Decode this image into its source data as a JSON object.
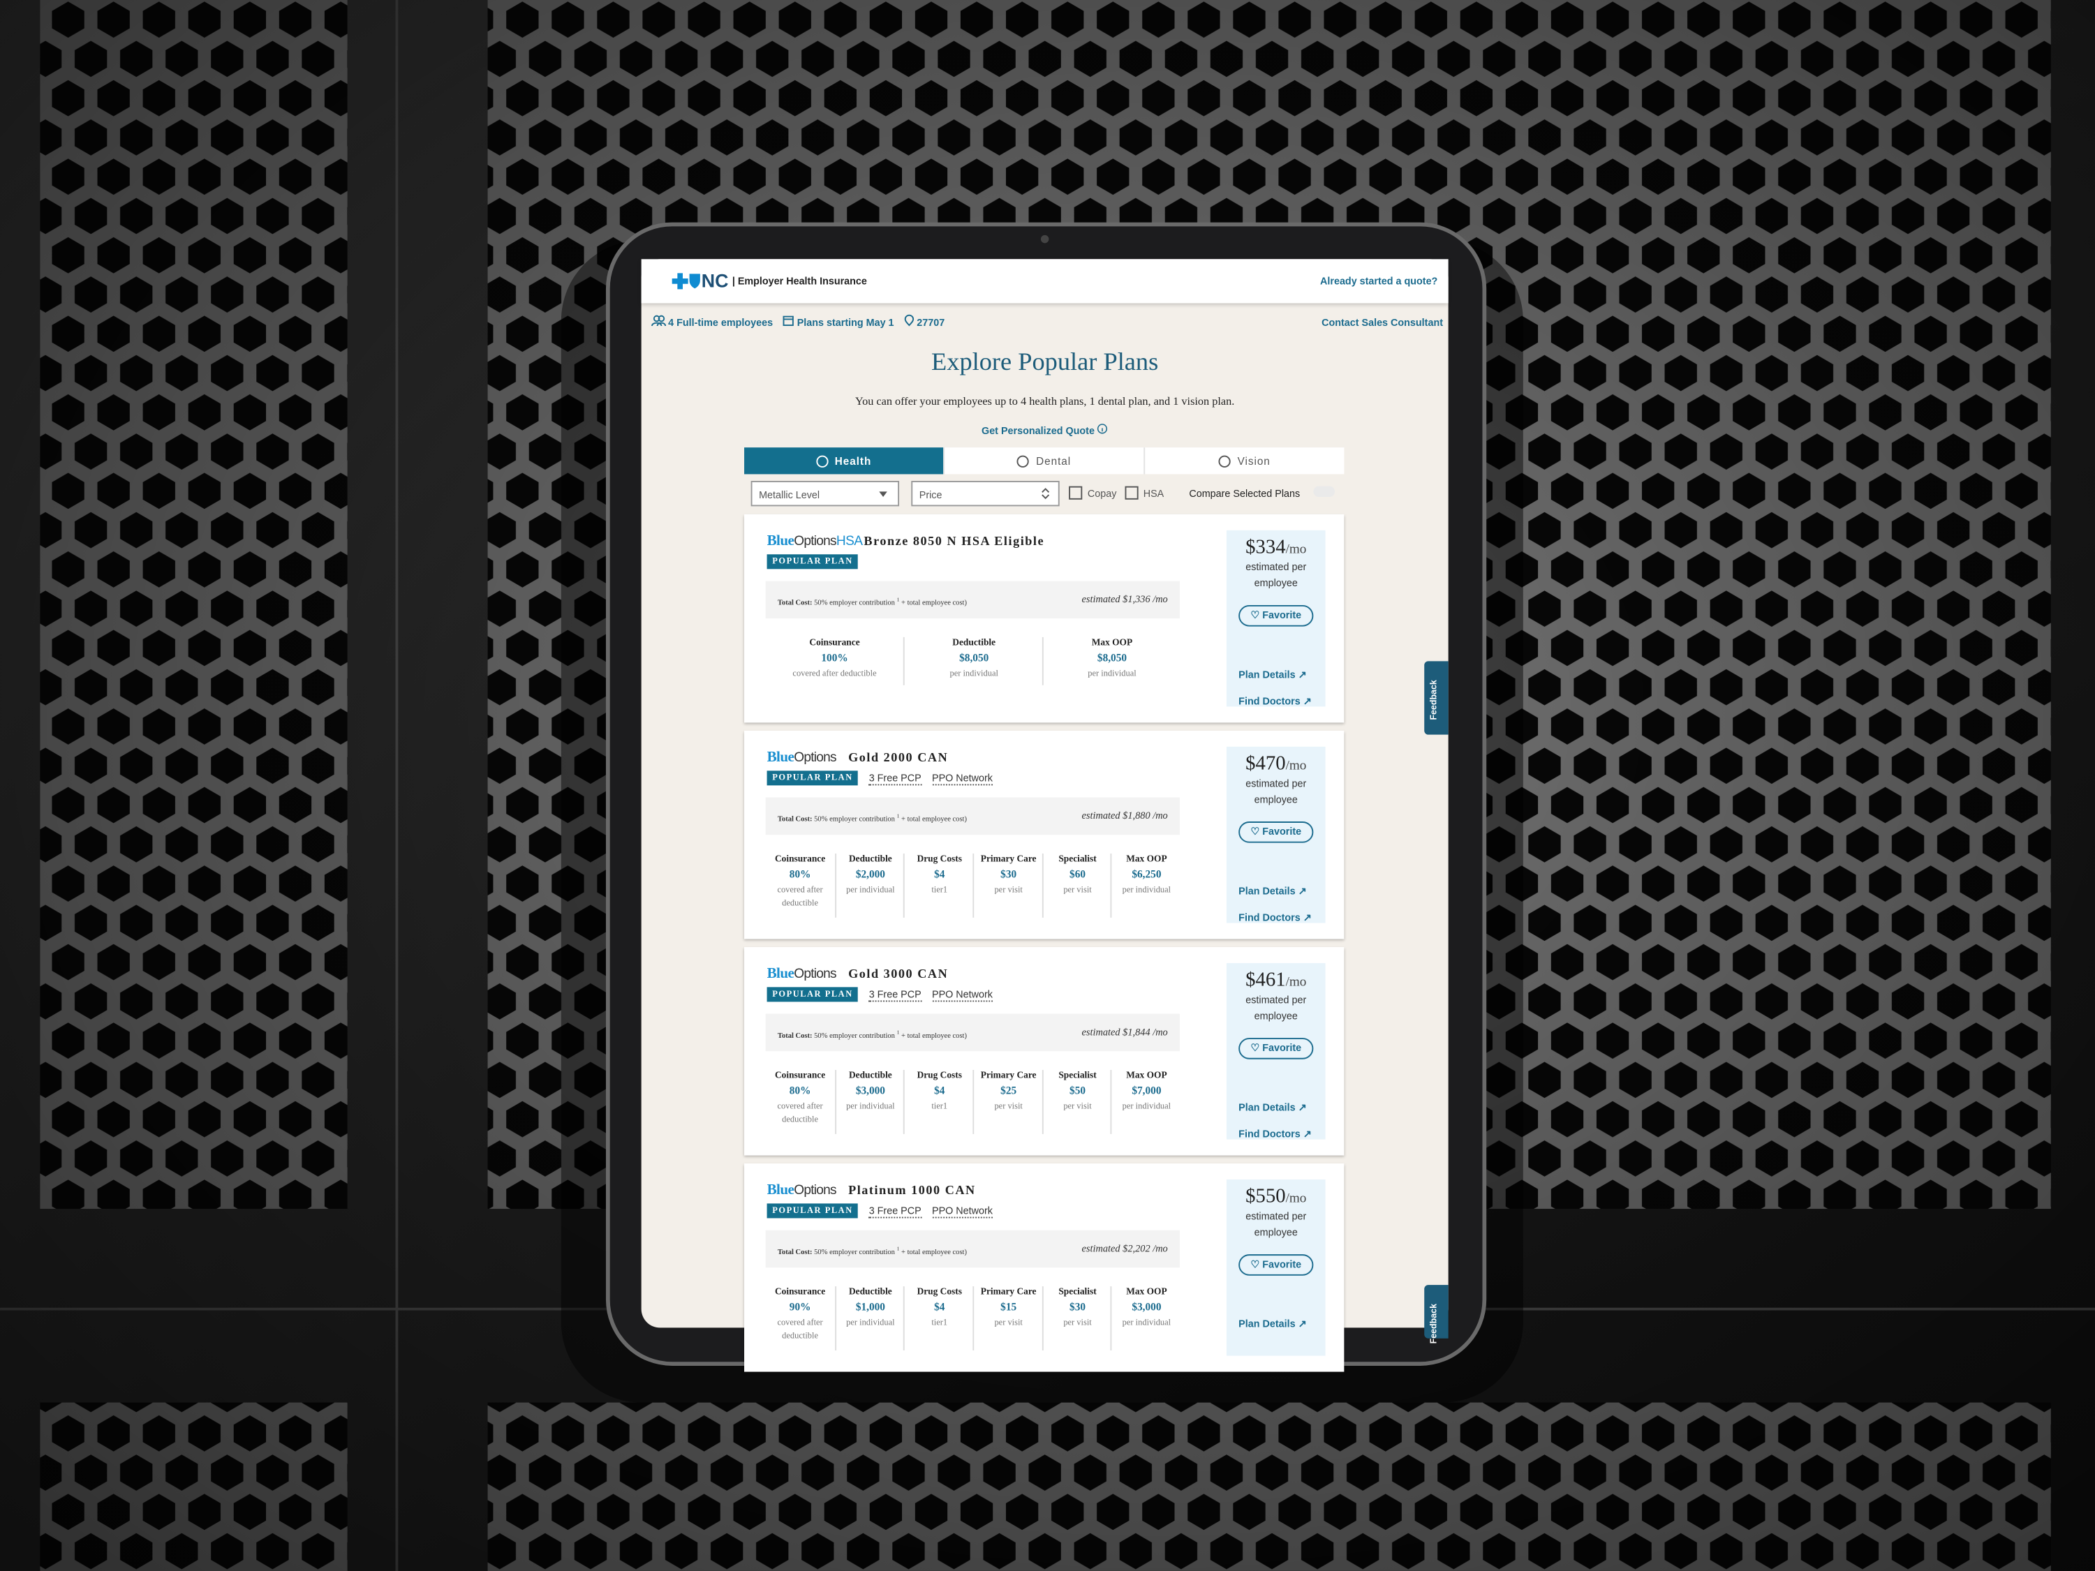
{
  "header": {
    "logo": "NC",
    "product": "| Employer Health Insurance",
    "link": "Already started a quote?"
  },
  "subheader": {
    "employees": "4 Full-time employees",
    "start": "Plans starting May 1",
    "zip": "27707",
    "contact": "Contact Sales Consultant"
  },
  "intro": {
    "title": "Explore Popular Plans",
    "subtitle": "You can offer your employees up to 4 health plans, 1 dental plan, and 1 vision plan.",
    "quote_link": "Get Personalized Quote"
  },
  "tabs": [
    "Health",
    "Dental",
    "Vision"
  ],
  "filters": {
    "metallic": "Metallic Level",
    "price": "Price",
    "copay": "Copay",
    "hsa": "HSA",
    "compare": "Compare Selected Plans"
  },
  "feedback": "Feedback",
  "plans": [
    {
      "brand": "Blue",
      "brand_rest": "Options",
      "brand_suffix": "HSA",
      "name": "Bronze 8050 N HSA Eligible",
      "badge": "POPULAR PLAN",
      "tags": [],
      "total_label": "Total Cost:",
      "total_text": "50% employer contribution",
      "footnote": "1",
      "total_rest": "+ total employee cost)",
      "estimate": "estimated $1,336 /mo",
      "stats": [
        {
          "label": "Coinsurance",
          "value": "100%",
          "note": "covered after deductible"
        },
        {
          "label": "Deductible",
          "value": "$8,050",
          "note": "per individual"
        },
        {
          "label": "Max OOP",
          "value": "$8,050",
          "note": "per individual"
        }
      ],
      "price": "$334",
      "per": "/mo",
      "price_note": "estimated per employee",
      "favorite": "Favorite",
      "plan_details": "Plan Details",
      "find_doctors": "Find Doctors"
    },
    {
      "brand": "Blue",
      "brand_rest": "Options",
      "name": "Gold 2000 CAN",
      "badge": "POPULAR PLAN",
      "tags": [
        "3 Free PCP",
        "PPO Network"
      ],
      "total_label": "Total Cost:",
      "total_text": "50% employer contribution",
      "footnote": "1",
      "total_rest": "+ total employee cost)",
      "estimate": "estimated $1,880 /mo",
      "stats": [
        {
          "label": "Coinsurance",
          "value": "80%",
          "note": "covered after deductible"
        },
        {
          "label": "Deductible",
          "value": "$2,000",
          "note": "per individual"
        },
        {
          "label": "Drug Costs",
          "value": "$4",
          "note": "tier1"
        },
        {
          "label": "Primary Care",
          "value": "$30",
          "note": "per visit"
        },
        {
          "label": "Specialist",
          "value": "$60",
          "note": "per visit"
        },
        {
          "label": "Max OOP",
          "value": "$6,250",
          "note": "per individual"
        }
      ],
      "price": "$470",
      "per": "/mo",
      "price_note": "estimated per employee",
      "favorite": "Favorite",
      "plan_details": "Plan Details",
      "find_doctors": "Find Doctors"
    },
    {
      "brand": "Blue",
      "brand_rest": "Options",
      "name": "Gold 3000 CAN",
      "badge": "POPULAR PLAN",
      "tags": [
        "3 Free PCP",
        "PPO Network"
      ],
      "total_label": "Total Cost:",
      "total_text": "50% employer contribution",
      "footnote": "1",
      "total_rest": "+ total employee cost)",
      "estimate": "estimated $1,844 /mo",
      "stats": [
        {
          "label": "Coinsurance",
          "value": "80%",
          "note": "covered after deductible"
        },
        {
          "label": "Deductible",
          "value": "$3,000",
          "note": "per individual"
        },
        {
          "label": "Drug Costs",
          "value": "$4",
          "note": "tier1"
        },
        {
          "label": "Primary Care",
          "value": "$25",
          "note": "per visit"
        },
        {
          "label": "Specialist",
          "value": "$50",
          "note": "per visit"
        },
        {
          "label": "Max OOP",
          "value": "$7,000",
          "note": "per individual"
        }
      ],
      "price": "$461",
      "per": "/mo",
      "price_note": "estimated per employee",
      "favorite": "Favorite",
      "plan_details": "Plan Details",
      "find_doctors": "Find Doctors"
    },
    {
      "brand": "Blue",
      "brand_rest": "Options",
      "name": "Platinum 1000 CAN",
      "badge": "POPULAR PLAN",
      "tags": [
        "3 Free PCP",
        "PPO Network"
      ],
      "total_label": "Total Cost:",
      "total_text": "50% employer contribution",
      "footnote": "1",
      "total_rest": "+ total employee cost)",
      "estimate": "estimated $2,202 /mo",
      "stats": [
        {
          "label": "Coinsurance",
          "value": "90%",
          "note": "covered after deductible"
        },
        {
          "label": "Deductible",
          "value": "$1,000",
          "note": "per individual"
        },
        {
          "label": "Drug Costs",
          "value": "$4",
          "note": "tier1"
        },
        {
          "label": "Primary Care",
          "value": "$15",
          "note": "per visit"
        },
        {
          "label": "Specialist",
          "value": "$30",
          "note": "per visit"
        },
        {
          "label": "Max OOP",
          "value": "$3,000",
          "note": "per individual"
        }
      ],
      "price": "$550",
      "per": "/mo",
      "price_note": "estimated per employee",
      "favorite": "Favorite",
      "plan_details": "Plan Details"
    }
  ]
}
